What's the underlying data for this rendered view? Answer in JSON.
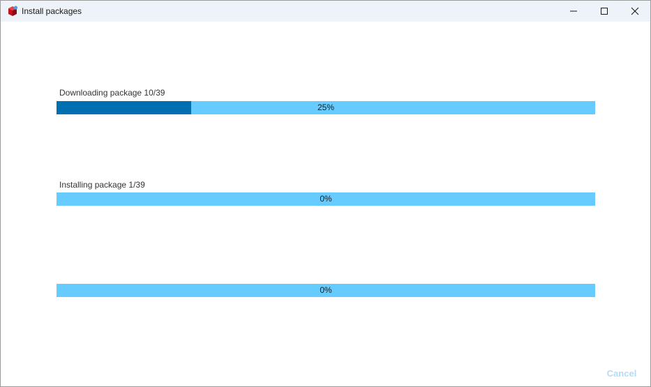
{
  "window": {
    "title": "Install packages",
    "icon": "package-icon",
    "controls": [
      "minimize-icon",
      "maximize-icon",
      "close-icon"
    ]
  },
  "download": {
    "label": "Downloading package 10/39",
    "progress_percent": 25,
    "progress_text": "25%"
  },
  "install": {
    "label": "Installing package 1/39",
    "progress_percent": 0,
    "progress_text": "0%"
  },
  "overall": {
    "label": "",
    "progress_percent": 0,
    "progress_text": "0%"
  },
  "footer": {
    "cancel_label": "Cancel"
  },
  "colors": {
    "bar_background": "#66ccff",
    "bar_fill": "#0070b0",
    "cancel_disabled": "#b4dcf2",
    "titlebar": "#eef2f9"
  }
}
